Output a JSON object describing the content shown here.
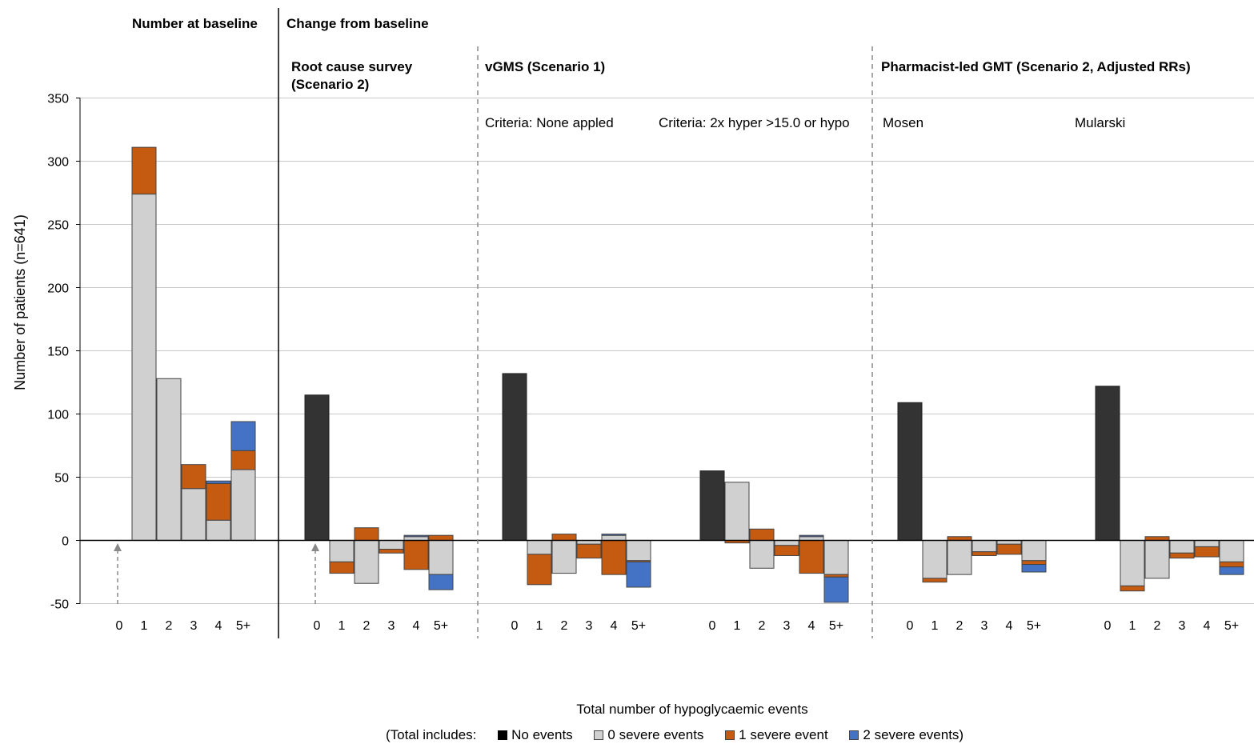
{
  "chart_data": {
    "type": "bar",
    "ylabel": "Number  of patients (n=641)",
    "xlabel": "Total number of hypoglycaemic events",
    "ylim": [
      -50,
      350
    ],
    "yticks": [
      -50,
      0,
      50,
      100,
      150,
      200,
      250,
      300,
      350
    ],
    "grid": true,
    "categories": [
      "0",
      "1",
      "2",
      "3",
      "4",
      "5+"
    ],
    "headers": {
      "baseline": "Number at baseline",
      "change": "Change from baseline"
    },
    "legend": {
      "prefix": "(Total includes:",
      "items": [
        {
          "label": "No events",
          "color": "#333333"
        },
        {
          "label": "0 severe events",
          "color": "#d0d0d0"
        },
        {
          "label": "1 severe event",
          "color": "#c55a11"
        },
        {
          "label": "2 severe events)",
          "color": "#4472c4"
        }
      ]
    },
    "groups": [
      {
        "title": [
          "",
          ""
        ],
        "subtitle": "",
        "bars": [
          {
            "no": 0,
            "pos": [
              0,
              0,
              0
            ],
            "neg": [
              0,
              0,
              0
            ]
          },
          {
            "no": 0,
            "pos": [
              274,
              37,
              0
            ],
            "neg": [
              0,
              0,
              0
            ]
          },
          {
            "no": 0,
            "pos": [
              128,
              0,
              0
            ],
            "neg": [
              0,
              0,
              0
            ]
          },
          {
            "no": 0,
            "pos": [
              41,
              19,
              0
            ],
            "neg": [
              0,
              0,
              0
            ]
          },
          {
            "no": 0,
            "pos": [
              16,
              29,
              2
            ],
            "neg": [
              0,
              0,
              0
            ]
          },
          {
            "no": 0,
            "pos": [
              56,
              15,
              23
            ],
            "neg": [
              0,
              0,
              0
            ]
          }
        ]
      },
      {
        "title": [
          "Root cause survey",
          "(Scenario 2)"
        ],
        "subtitle": "",
        "bars": [
          {
            "no": 115,
            "pos": [
              0,
              0,
              0
            ],
            "neg": [
              0,
              0,
              0
            ]
          },
          {
            "no": 0,
            "pos": [
              0,
              0,
              0
            ],
            "neg": [
              17,
              9,
              0
            ]
          },
          {
            "no": 0,
            "pos": [
              0,
              10,
              0
            ],
            "neg": [
              34,
              0,
              0
            ]
          },
          {
            "no": 0,
            "pos": [
              0,
              0,
              0
            ],
            "neg": [
              7,
              3,
              0
            ]
          },
          {
            "no": 0,
            "pos": [
              3,
              0,
              1
            ],
            "neg": [
              0,
              23,
              0
            ]
          },
          {
            "no": 0,
            "pos": [
              0,
              4,
              0
            ],
            "neg": [
              27,
              0,
              12
            ]
          }
        ]
      },
      {
        "title": [
          "vGMS (Scenario 1)",
          ""
        ],
        "subtitle": "Criteria: None appled",
        "bars": [
          {
            "no": 132,
            "pos": [
              0,
              0,
              0
            ],
            "neg": [
              0,
              0,
              0
            ]
          },
          {
            "no": 0,
            "pos": [
              0,
              0,
              0
            ],
            "neg": [
              11,
              24,
              0
            ]
          },
          {
            "no": 0,
            "pos": [
              0,
              5,
              0
            ],
            "neg": [
              26,
              0,
              0
            ]
          },
          {
            "no": 0,
            "pos": [
              0,
              0,
              0
            ],
            "neg": [
              3,
              11,
              0
            ]
          },
          {
            "no": 0,
            "pos": [
              4,
              0,
              1
            ],
            "neg": [
              0,
              27,
              0
            ]
          },
          {
            "no": 0,
            "pos": [
              0,
              0,
              0
            ],
            "neg": [
              16,
              1,
              20
            ]
          }
        ]
      },
      {
        "title": [
          "",
          ""
        ],
        "subtitle": "Criteria: 2x hyper >15.0 or hypo",
        "bars": [
          {
            "no": 55,
            "pos": [
              0,
              0,
              0
            ],
            "neg": [
              0,
              0,
              0
            ]
          },
          {
            "no": 0,
            "pos": [
              46,
              0,
              0
            ],
            "neg": [
              0,
              2,
              0
            ]
          },
          {
            "no": 0,
            "pos": [
              0,
              9,
              0
            ],
            "neg": [
              22,
              0,
              0
            ]
          },
          {
            "no": 0,
            "pos": [
              0,
              0,
              0
            ],
            "neg": [
              4,
              8,
              0
            ]
          },
          {
            "no": 0,
            "pos": [
              3,
              0,
              1
            ],
            "neg": [
              0,
              26,
              0
            ]
          },
          {
            "no": 0,
            "pos": [
              0,
              0,
              0
            ],
            "neg": [
              27,
              2,
              20
            ]
          }
        ]
      },
      {
        "title": [
          "Pharmacist-led GMT (Scenario 2, Adjusted RRs)",
          ""
        ],
        "subtitle": "Mosen",
        "bars": [
          {
            "no": 109,
            "pos": [
              0,
              0,
              0
            ],
            "neg": [
              0,
              0,
              0
            ]
          },
          {
            "no": 0,
            "pos": [
              0,
              0,
              0
            ],
            "neg": [
              30,
              3,
              0
            ]
          },
          {
            "no": 0,
            "pos": [
              0,
              3,
              0
            ],
            "neg": [
              27,
              0,
              0
            ]
          },
          {
            "no": 0,
            "pos": [
              0,
              0,
              0
            ],
            "neg": [
              9,
              3,
              0
            ]
          },
          {
            "no": 0,
            "pos": [
              0,
              0,
              0
            ],
            "neg": [
              3,
              8,
              0
            ]
          },
          {
            "no": 0,
            "pos": [
              0,
              0,
              0
            ],
            "neg": [
              16,
              3,
              6
            ]
          }
        ]
      },
      {
        "title": [
          "",
          ""
        ],
        "subtitle": "Mularski",
        "bars": [
          {
            "no": 122,
            "pos": [
              0,
              0,
              0
            ],
            "neg": [
              0,
              0,
              0
            ]
          },
          {
            "no": 0,
            "pos": [
              0,
              0,
              0
            ],
            "neg": [
              36,
              4,
              0
            ]
          },
          {
            "no": 0,
            "pos": [
              0,
              3,
              0
            ],
            "neg": [
              30,
              0,
              0
            ]
          },
          {
            "no": 0,
            "pos": [
              0,
              0,
              0
            ],
            "neg": [
              10,
              4,
              0
            ]
          },
          {
            "no": 0,
            "pos": [
              0,
              0,
              0
            ],
            "neg": [
              5,
              8,
              0
            ]
          },
          {
            "no": 0,
            "pos": [
              0,
              0,
              0
            ],
            "neg": [
              17,
              4,
              6
            ]
          }
        ]
      }
    ]
  }
}
